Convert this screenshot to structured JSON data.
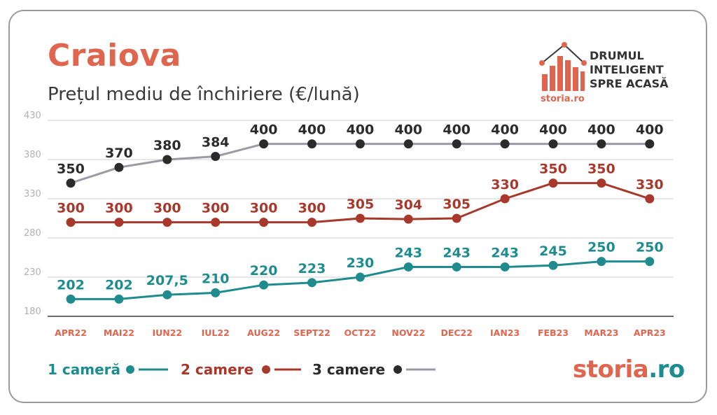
{
  "header": {
    "city": "Craiova",
    "subtitle": "Prețul mediu de închiriere (€/lună)"
  },
  "branding": {
    "tagline": [
      "DRUMUL",
      "INTELIGENT",
      "SPRE ACASĂ"
    ],
    "logo_small": "storia.ro",
    "footer_left": "storia",
    "footer_right": ".ro"
  },
  "colors": {
    "accent": "#e0654f",
    "teal": "#1e8c8f",
    "red": "#a8382b",
    "grey_line": "#9a9aa3",
    "dark": "#2b2b2b",
    "grid": "#cfcfcf",
    "tick": "#b0b0b0",
    "category_label": "#e0654f"
  },
  "chart_data": {
    "type": "line",
    "categories": [
      "APR22",
      "MAI22",
      "IUN22",
      "IUL22",
      "AUG22",
      "SEPT22",
      "OCT22",
      "NOV22",
      "DEC22",
      "IAN23",
      "FEB23",
      "MAR23",
      "APR23"
    ],
    "yticks": [
      "430",
      "380",
      "330",
      "280",
      "230",
      "180"
    ],
    "ylim": [
      180,
      430
    ],
    "grid": true,
    "legend_position": "bottom-left",
    "series": [
      {
        "name": "1 cameră",
        "color": "#1e8c8f",
        "marker_color": "#1e8c8f",
        "values": [
          202,
          202,
          207.5,
          210,
          220,
          223,
          230,
          243,
          243,
          243,
          245,
          250,
          250
        ],
        "labels": [
          "202",
          "202",
          "207,5",
          "210",
          "220",
          "223",
          "230",
          "243",
          "243",
          "243",
          "245",
          "250",
          "250"
        ]
      },
      {
        "name": "2 camere",
        "color": "#a8382b",
        "marker_color": "#a8382b",
        "values": [
          300,
          300,
          300,
          300,
          300,
          300,
          305,
          304,
          305,
          330,
          350,
          350,
          330
        ],
        "labels": [
          "300",
          "300",
          "300",
          "300",
          "300",
          "300",
          "305",
          "304",
          "305",
          "330",
          "350",
          "350",
          "330"
        ]
      },
      {
        "name": "3 camere",
        "color": "#9a9aa3",
        "marker_color": "#2b2b2b",
        "values": [
          350,
          370,
          380,
          384,
          400,
          400,
          400,
          400,
          400,
          400,
          400,
          400,
          400
        ],
        "labels": [
          "350",
          "370",
          "380",
          "384",
          "400",
          "400",
          "400",
          "400",
          "400",
          "400",
          "400",
          "400",
          "400"
        ]
      }
    ]
  }
}
